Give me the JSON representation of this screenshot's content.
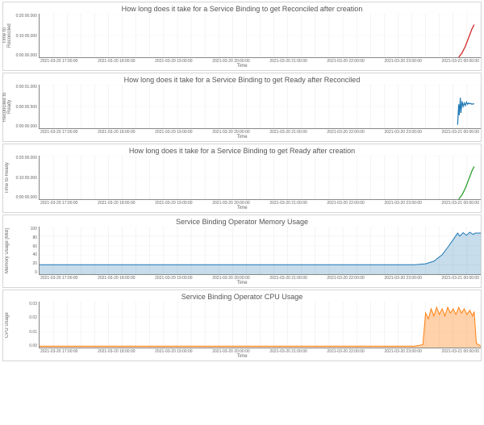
{
  "charts": [
    {
      "id": "c1",
      "title": "How long does it take for a Service Binding to get Reconciled after creation",
      "ylabel": "Time to Reconciled",
      "xlabel": "Time",
      "height": 55,
      "type": "line",
      "yticks": [
        "0:00:00.000",
        "0:10:00.000",
        "0:20:00.000"
      ],
      "ylim": [
        0,
        20
      ],
      "xticks": [
        "2021-03-20 17:00:00",
        "2021-03-20 18:00:00",
        "2021-03-20 19:00:00",
        "2021-03-20 20:00:00",
        "2021-03-20 21:00:00",
        "2021-03-20 22:00:00",
        "2021-03-20 23:00:00",
        "2021-03-21 00:00:00"
      ],
      "xlim": [
        0,
        8
      ],
      "grid_color": "#e8e8e8",
      "background_color": "#ffffff",
      "series": [
        {
          "color": "#d62728",
          "width": 1.3,
          "fill": "none",
          "points": [
            [
              7.6,
              0
            ],
            [
              7.66,
              2
            ],
            [
              7.72,
              5
            ],
            [
              7.78,
              9
            ],
            [
              7.84,
              13
            ],
            [
              7.88,
              15
            ]
          ]
        }
      ]
    },
    {
      "id": "c2",
      "title": "How long does it take for a Service Binding to get Ready after Reconciled",
      "ylabel": "Reconciled to Ready",
      "xlabel": "Time",
      "height": 55,
      "type": "line",
      "yticks": [
        "0:00:00.000",
        "0:00:00.500",
        "0:00:01.000"
      ],
      "ylim": [
        0,
        1
      ],
      "xticks": [
        "2021-03-20 17:00:00",
        "2021-03-20 18:00:00",
        "2021-03-20 19:00:00",
        "2021-03-20 20:00:00",
        "2021-03-20 21:00:00",
        "2021-03-20 22:00:00",
        "2021-03-20 23:00:00",
        "2021-03-21 00:00:00"
      ],
      "xlim": [
        0,
        8
      ],
      "grid_color": "#e8e8e8",
      "series": [
        {
          "color": "#1f77b4",
          "width": 1.2,
          "fill": "none",
          "points": [
            [
              7.58,
              0.08
            ],
            [
              7.6,
              0.55
            ],
            [
              7.61,
              0.3
            ],
            [
              7.63,
              0.7
            ],
            [
              7.64,
              0.35
            ],
            [
              7.66,
              0.62
            ],
            [
              7.68,
              0.5
            ],
            [
              7.7,
              0.58
            ],
            [
              7.72,
              0.52
            ],
            [
              7.74,
              0.6
            ],
            [
              7.76,
              0.55
            ],
            [
              7.78,
              0.58
            ],
            [
              7.8,
              0.56
            ],
            [
              7.82,
              0.57
            ],
            [
              7.84,
              0.55
            ],
            [
              7.86,
              0.56
            ],
            [
              7.88,
              0.56
            ]
          ]
        }
      ]
    },
    {
      "id": "c3",
      "title": "How long does it take for a Service Binding to get Ready after creation",
      "ylabel": "Time to Ready",
      "xlabel": "Time",
      "height": 55,
      "type": "line",
      "yticks": [
        "0:00:00.000",
        "0:10:00.000",
        "0:20:00.000"
      ],
      "ylim": [
        0,
        20
      ],
      "xticks": [
        "2021-03-20 17:00:00",
        "2021-03-20 18:00:00",
        "2021-03-20 19:00:00",
        "2021-03-20 20:00:00",
        "2021-03-20 21:00:00",
        "2021-03-20 22:00:00",
        "2021-03-20 23:00:00",
        "2021-03-21 00:00:00"
      ],
      "xlim": [
        0,
        8
      ],
      "grid_color": "#e8e8e8",
      "series": [
        {
          "color": "#2ca02c",
          "width": 1.3,
          "fill": "none",
          "points": [
            [
              7.6,
              0
            ],
            [
              7.66,
              2
            ],
            [
              7.72,
              5
            ],
            [
              7.78,
              9
            ],
            [
              7.84,
              13
            ],
            [
              7.88,
              15
            ]
          ]
        }
      ]
    },
    {
      "id": "c4",
      "title": "Service Binding Operator Memory Usage",
      "ylabel": "Memory Usage [MiB]",
      "xlabel": "Time",
      "height": 60,
      "type": "area",
      "yticks": [
        "0",
        "20",
        "40",
        "60",
        "80",
        "100"
      ],
      "ylim": [
        0,
        110
      ],
      "xticks": [
        "2021-03-20 17:00:00",
        "2021-03-20 18:00:00",
        "2021-03-20 19:00:00",
        "2021-03-20 20:00:00",
        "2021-03-20 21:00:00",
        "2021-03-20 22:00:00",
        "2021-03-20 23:00:00",
        "2021-03-21 00:00:00"
      ],
      "xlim": [
        0,
        8
      ],
      "grid_color": "#e8e8e8",
      "series": [
        {
          "color": "#1f77b4",
          "width": 1,
          "fill": "rgba(31,119,180,0.25)",
          "points": [
            [
              0.0,
              22
            ],
            [
              0.5,
              22
            ],
            [
              1.0,
              22
            ],
            [
              2.0,
              22
            ],
            [
              3.0,
              22
            ],
            [
              4.0,
              22
            ],
            [
              5.0,
              22
            ],
            [
              6.0,
              22
            ],
            [
              6.8,
              22
            ],
            [
              7.0,
              24
            ],
            [
              7.15,
              30
            ],
            [
              7.3,
              45
            ],
            [
              7.4,
              62
            ],
            [
              7.5,
              80
            ],
            [
              7.58,
              95
            ],
            [
              7.62,
              88
            ],
            [
              7.68,
              96
            ],
            [
              7.74,
              90
            ],
            [
              7.8,
              97
            ],
            [
              7.86,
              92
            ],
            [
              7.9,
              95
            ],
            [
              8.0,
              95
            ]
          ]
        }
      ]
    },
    {
      "id": "c5",
      "title": "Service Binding Operator CPU Usage",
      "ylabel": "CPU Usage",
      "xlabel": "Time",
      "height": 58,
      "type": "area",
      "yticks": [
        "0.00",
        "0.01",
        "0.02",
        "0.03"
      ],
      "ylim": [
        0,
        0.032
      ],
      "xticks": [
        "2021-03-20 17:00:00",
        "2021-03-20 18:00:00",
        "2021-03-20 19:00:00",
        "2021-03-20 20:00:00",
        "2021-03-20 21:00:00",
        "2021-03-20 22:00:00",
        "2021-03-20 23:00:00",
        "2021-03-21 00:00:00"
      ],
      "xlim": [
        0,
        8
      ],
      "grid_color": "#e8e8e8",
      "series": [
        {
          "color": "#ff7f0e",
          "width": 1,
          "fill": "rgba(255,127,14,0.35)",
          "points": [
            [
              0.0,
              0.001
            ],
            [
              1.0,
              0.001
            ],
            [
              2.0,
              0.001
            ],
            [
              3.0,
              0.001
            ],
            [
              4.0,
              0.001
            ],
            [
              5.0,
              0.001
            ],
            [
              6.0,
              0.001
            ],
            [
              6.8,
              0.001
            ],
            [
              6.95,
              0.002
            ],
            [
              7.0,
              0.024
            ],
            [
              7.05,
              0.02
            ],
            [
              7.1,
              0.027
            ],
            [
              7.15,
              0.022
            ],
            [
              7.2,
              0.028
            ],
            [
              7.25,
              0.023
            ],
            [
              7.3,
              0.027
            ],
            [
              7.35,
              0.022
            ],
            [
              7.4,
              0.028
            ],
            [
              7.45,
              0.024
            ],
            [
              7.5,
              0.027
            ],
            [
              7.55,
              0.023
            ],
            [
              7.6,
              0.028
            ],
            [
              7.65,
              0.024
            ],
            [
              7.7,
              0.027
            ],
            [
              7.75,
              0.023
            ],
            [
              7.8,
              0.026
            ],
            [
              7.85,
              0.022
            ],
            [
              7.88,
              0.025
            ],
            [
              7.92,
              0.003
            ],
            [
              8.0,
              0.001
            ]
          ]
        }
      ]
    }
  ]
}
